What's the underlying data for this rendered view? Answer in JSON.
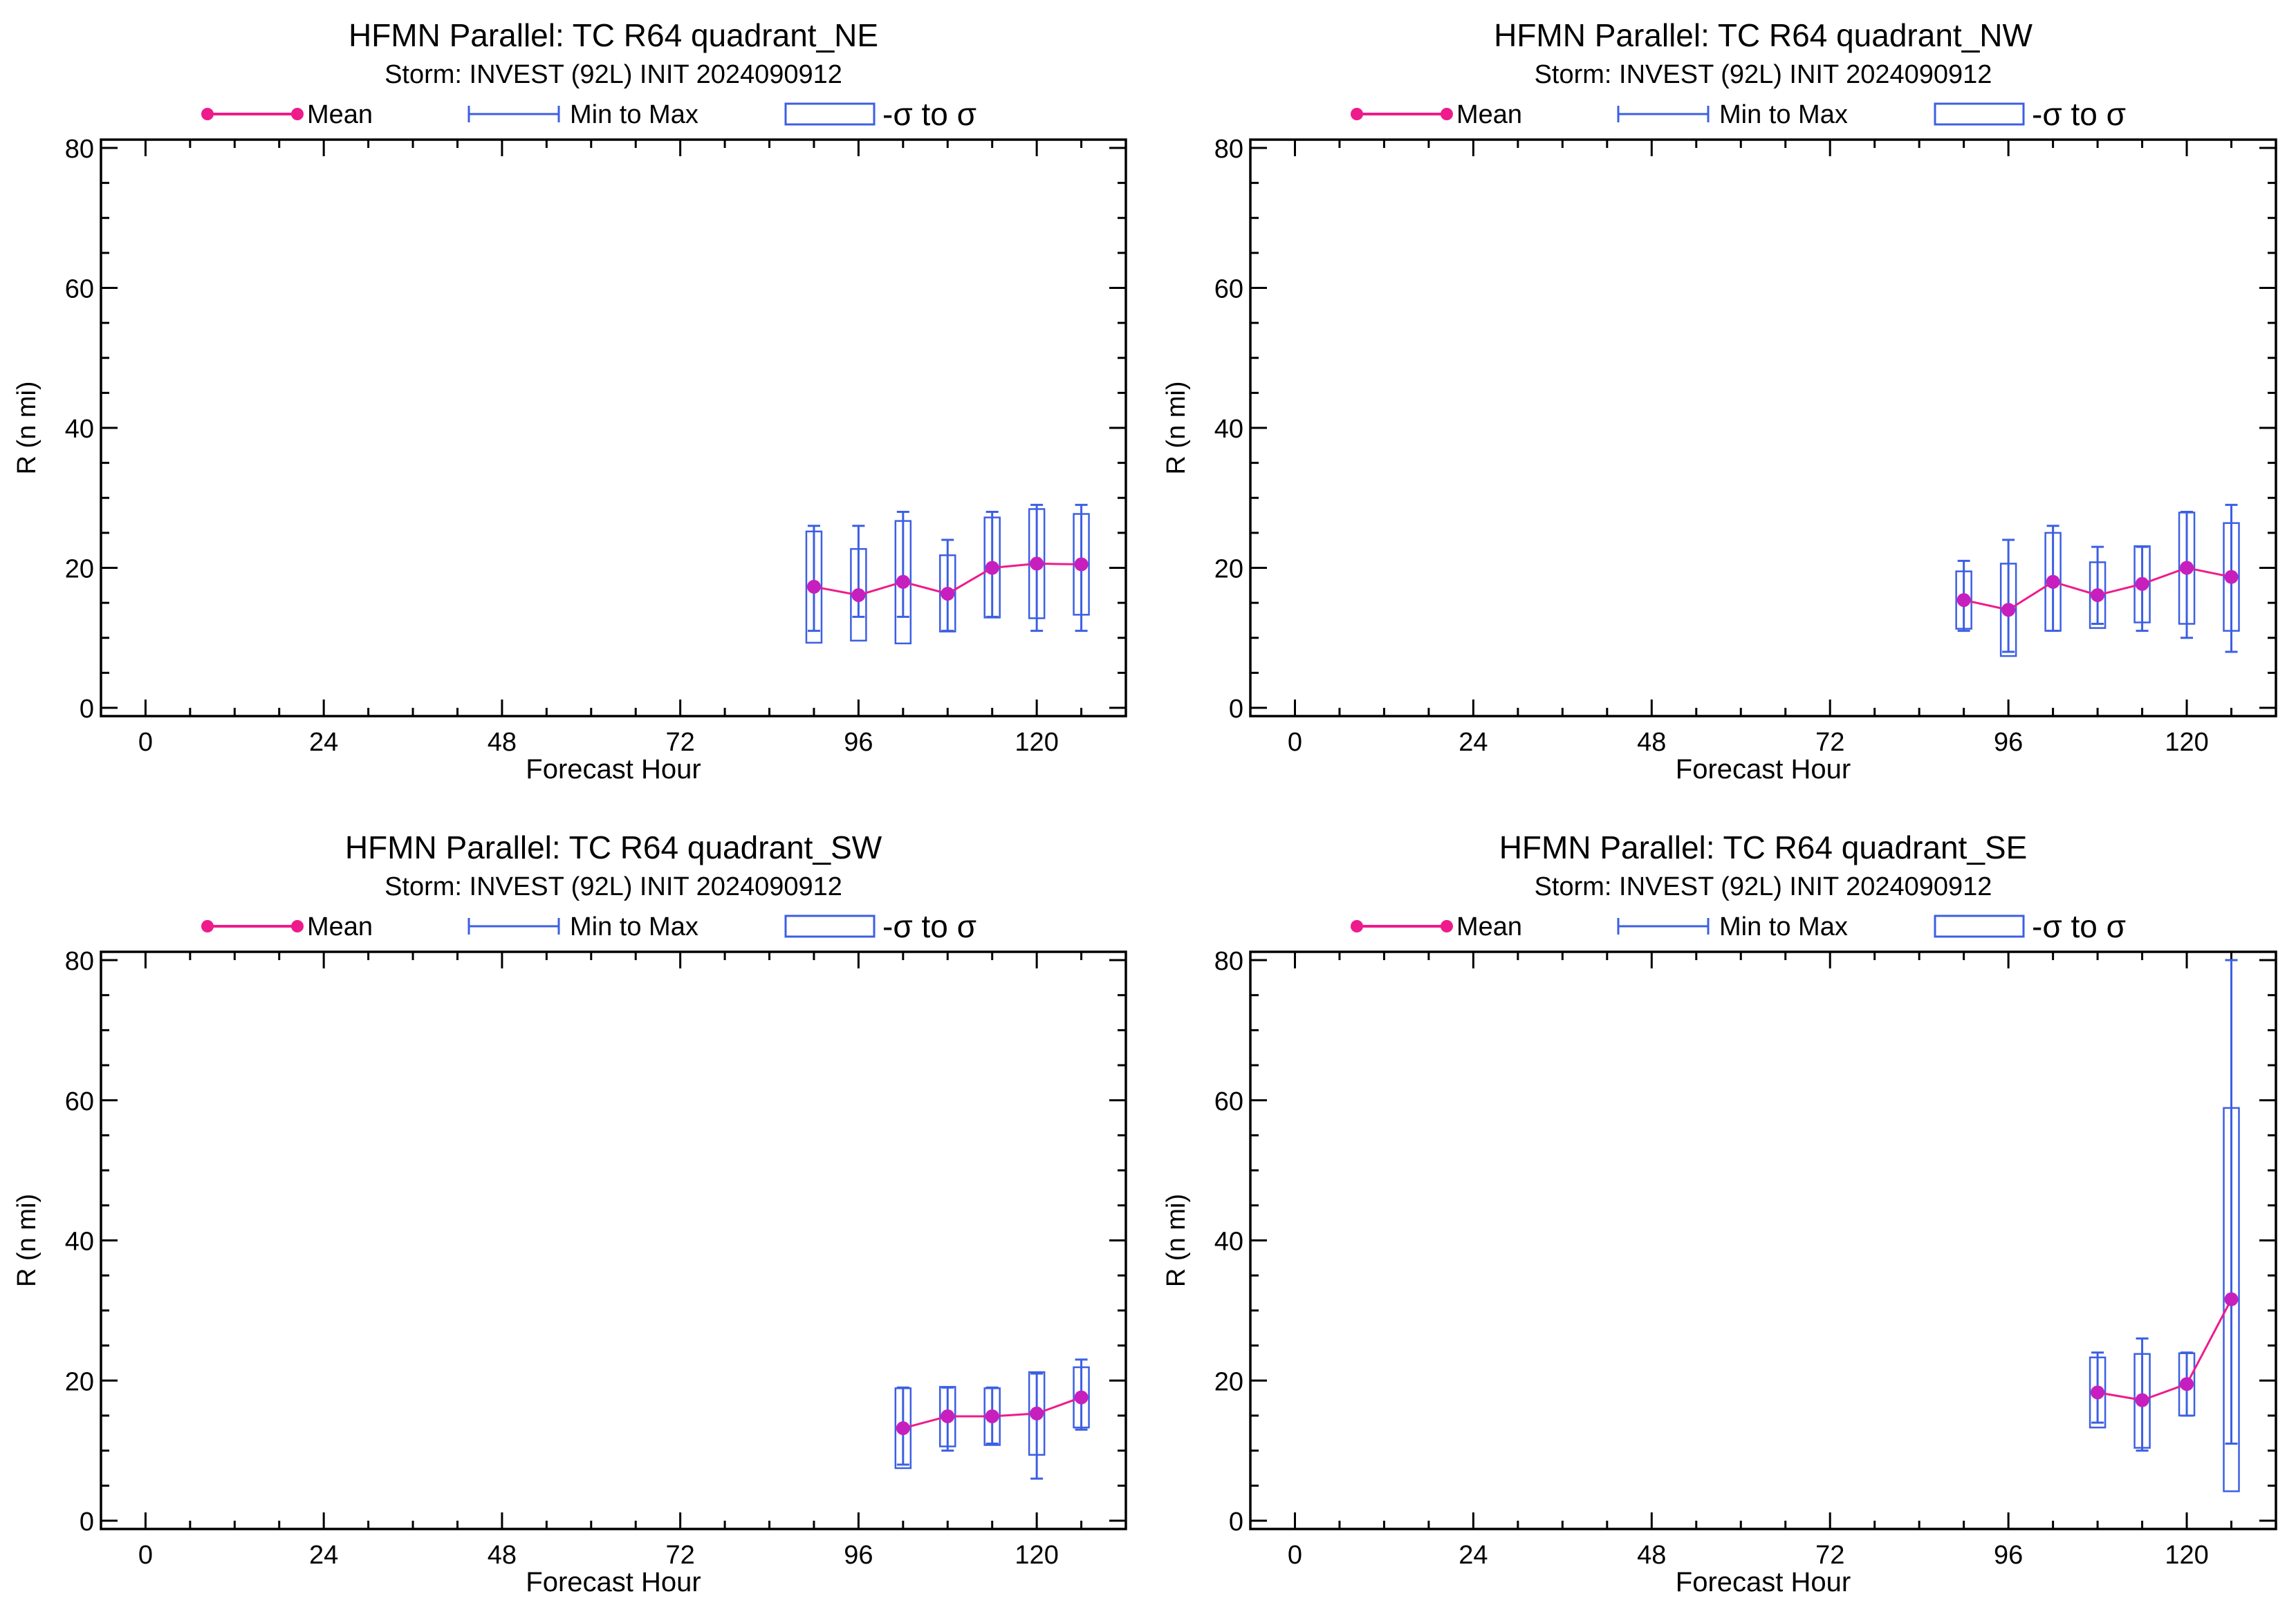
{
  "legend": {
    "mean_label": "Mean",
    "minmax_label": "Min to Max",
    "sigma_label": "-σ to σ"
  },
  "colors": {
    "mean": "#ee1b8c",
    "mean_marker": "#c61fbe",
    "box": "#3c5fe3",
    "axis": "#000000"
  },
  "chart_data": [
    {
      "type": "box",
      "title": "HFMN Parallel: TC  R64 quadrant_NE",
      "subtitle": "Storm: INVEST (92L) INIT 2024090912",
      "xlabel": "Forecast Hour",
      "ylabel": "R (n mi)",
      "xlim": [
        -6,
        132
      ],
      "ylim": [
        0,
        80
      ],
      "xticks": [
        0,
        24,
        48,
        72,
        96,
        120
      ],
      "yticks": [
        0,
        20,
        40,
        60,
        80
      ],
      "series": [
        {
          "name": "Mean",
          "x": [
            90,
            96,
            102,
            108,
            114,
            120,
            126
          ],
          "values": [
            17.3,
            16.1,
            18.0,
            16.3,
            20.0,
            20.6,
            20.5
          ]
        },
        {
          "name": "Min to Max",
          "x": [
            90,
            96,
            102,
            108,
            114,
            120,
            126
          ],
          "min": [
            11,
            13,
            13,
            11,
            13,
            11,
            11
          ],
          "max": [
            26,
            26,
            28,
            24,
            28,
            29,
            29
          ]
        },
        {
          "name": "-σ to σ",
          "x": [
            90,
            96,
            102,
            108,
            114,
            120,
            126
          ],
          "low": [
            9.3,
            9.6,
            9.2,
            10.9,
            12.9,
            12.8,
            13.3
          ],
          "high": [
            25.2,
            22.7,
            26.7,
            21.8,
            27.2,
            28.4,
            27.7
          ]
        }
      ]
    },
    {
      "type": "box",
      "title": "HFMN Parallel: TC  R64 quadrant_NW",
      "subtitle": "Storm: INVEST (92L) INIT 2024090912",
      "xlabel": "Forecast Hour",
      "ylabel": "R (n mi)",
      "xlim": [
        -6,
        132
      ],
      "ylim": [
        0,
        80
      ],
      "xticks": [
        0,
        24,
        48,
        72,
        96,
        120
      ],
      "yticks": [
        0,
        20,
        40,
        60,
        80
      ],
      "series": [
        {
          "name": "Mean",
          "x": [
            90,
            96,
            102,
            108,
            114,
            120,
            126
          ],
          "values": [
            15.4,
            14.0,
            18.0,
            16.1,
            17.7,
            20.0,
            18.7
          ]
        },
        {
          "name": "Min to Max",
          "x": [
            90,
            96,
            102,
            108,
            114,
            120,
            126
          ],
          "min": [
            11,
            8,
            11,
            12,
            11,
            10,
            8
          ],
          "max": [
            21,
            24,
            26,
            23,
            23,
            28,
            29
          ]
        },
        {
          "name": "-σ to σ",
          "x": [
            90,
            96,
            102,
            108,
            114,
            120,
            126
          ],
          "low": [
            11.3,
            7.4,
            11.0,
            11.4,
            12.2,
            12.0,
            11.0
          ],
          "high": [
            19.5,
            20.6,
            25.0,
            20.8,
            23.1,
            27.9,
            26.4
          ]
        }
      ]
    },
    {
      "type": "box",
      "title": "HFMN Parallel: TC  R64 quadrant_SW",
      "subtitle": "Storm: INVEST (92L) INIT 2024090912",
      "xlabel": "Forecast Hour",
      "ylabel": "R (n mi)",
      "xlim": [
        -6,
        132
      ],
      "ylim": [
        0,
        80
      ],
      "xticks": [
        0,
        24,
        48,
        72,
        96,
        120
      ],
      "yticks": [
        0,
        20,
        40,
        60,
        80
      ],
      "series": [
        {
          "name": "Mean",
          "x": [
            102,
            108,
            114,
            120,
            126
          ],
          "values": [
            13.2,
            14.9,
            14.9,
            15.3,
            17.6
          ]
        },
        {
          "name": "Min to Max",
          "x": [
            102,
            108,
            114,
            120,
            126
          ],
          "min": [
            8,
            10,
            11,
            6,
            13
          ],
          "max": [
            19,
            19,
            19,
            21,
            23
          ]
        },
        {
          "name": "-σ to σ",
          "x": [
            102,
            108,
            114,
            120,
            126
          ],
          "low": [
            7.5,
            10.6,
            10.8,
            9.4,
            13.3
          ],
          "high": [
            18.9,
            19.1,
            18.9,
            21.2,
            21.9
          ]
        }
      ]
    },
    {
      "type": "box",
      "title": "HFMN Parallel: TC  R64 quadrant_SE",
      "subtitle": "Storm: INVEST (92L) INIT 2024090912",
      "xlabel": "Forecast Hour",
      "ylabel": "R (n mi)",
      "xlim": [
        -6,
        132
      ],
      "ylim": [
        0,
        80
      ],
      "xticks": [
        0,
        24,
        48,
        72,
        96,
        120
      ],
      "yticks": [
        0,
        20,
        40,
        60,
        80
      ],
      "series": [
        {
          "name": "Mean",
          "x": [
            108,
            114,
            120,
            126
          ],
          "values": [
            18.3,
            17.2,
            19.5,
            31.6
          ]
        },
        {
          "name": "Min to Max",
          "x": [
            108,
            114,
            120,
            126
          ],
          "min": [
            14,
            10,
            15,
            11
          ],
          "max": [
            24,
            26,
            24,
            80
          ]
        },
        {
          "name": "-σ to σ",
          "x": [
            108,
            114,
            120,
            126
          ],
          "low": [
            13.3,
            10.4,
            15.0,
            4.2
          ],
          "high": [
            23.3,
            23.8,
            23.9,
            58.9
          ]
        }
      ]
    }
  ]
}
